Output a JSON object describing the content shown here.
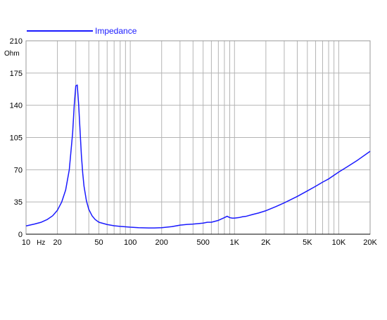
{
  "chart_data": {
    "type": "line",
    "x_scale": "log",
    "xlim": [
      10,
      20000
    ],
    "ylim": [
      0,
      210
    ],
    "grid": true,
    "legend_position": "top-left",
    "x_tick_labels": [
      {
        "value": 10,
        "label": "10"
      },
      {
        "value": 20,
        "label": "20"
      },
      {
        "value": 50,
        "label": "50"
      },
      {
        "value": 100,
        "label": "100"
      },
      {
        "value": 200,
        "label": "200"
      },
      {
        "value": 500,
        "label": "500"
      },
      {
        "value": 1000,
        "label": "1K"
      },
      {
        "value": 2000,
        "label": "2K"
      },
      {
        "value": 5000,
        "label": "5K"
      },
      {
        "value": 10000,
        "label": "10K"
      },
      {
        "value": 20000,
        "label": "20K"
      }
    ],
    "x_unit_label": "Hz",
    "y_ticks": [
      0,
      35,
      70,
      105,
      140,
      175,
      210
    ],
    "y_unit_label": "Ohm",
    "series": [
      {
        "name": "Impedance",
        "color": "#1a1aff",
        "x": [
          10,
          12,
          14,
          16,
          18,
          20,
          22,
          24,
          26,
          28,
          29,
          30,
          31,
          32,
          33,
          34,
          35,
          36,
          38,
          40,
          43,
          46,
          50,
          60,
          70,
          80,
          100,
          120,
          150,
          170,
          200,
          250,
          300,
          350,
          400,
          500,
          550,
          600,
          700,
          800,
          850,
          900,
          950,
          1000,
          1100,
          1200,
          1300,
          1500,
          1700,
          2000,
          2500,
          3000,
          4000,
          5000,
          6000,
          7000,
          8000,
          10000,
          12000,
          15000,
          20000
        ],
        "y": [
          9,
          11,
          13,
          16,
          20,
          26,
          35,
          48,
          70,
          110,
          140,
          161,
          162,
          140,
          112,
          85,
          66,
          52,
          36,
          27,
          20,
          16,
          13,
          10.5,
          9.2,
          8.5,
          7.6,
          7.1,
          6.8,
          6.8,
          7.1,
          8.2,
          9.8,
          10.6,
          11,
          12,
          13,
          13,
          15,
          18,
          19.5,
          18,
          17.5,
          17.5,
          18,
          19,
          19.5,
          21.5,
          23,
          25.5,
          30,
          34,
          41,
          47,
          52,
          56.5,
          60,
          67.5,
          73,
          80,
          90
        ]
      }
    ]
  }
}
